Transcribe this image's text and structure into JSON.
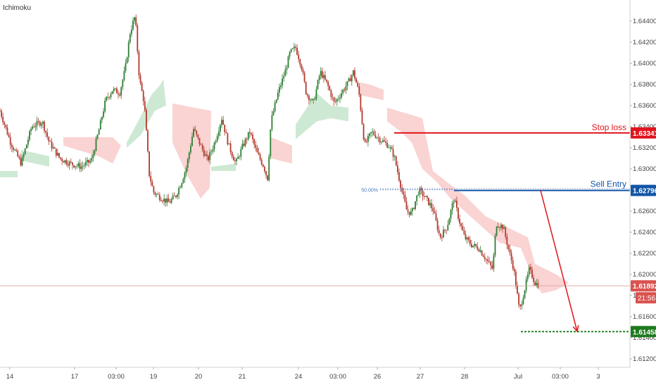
{
  "indicator": {
    "label": "Ichimoku"
  },
  "chart_data": {
    "type": "candlestick",
    "y_ticks": [
      "1.64400",
      "1.64200",
      "1.64000",
      "1.63800",
      "1.63600",
      "1.63400",
      "1.63200",
      "1.63000",
      "1.62800",
      "1.62600",
      "1.62400",
      "1.62200",
      "1.62000",
      "1.61800",
      "1.61600",
      "1.61400",
      "1.61200"
    ],
    "y_tick_values": [
      1.644,
      1.642,
      1.64,
      1.638,
      1.636,
      1.634,
      1.632,
      1.63,
      1.628,
      1.626,
      1.624,
      1.622,
      1.62,
      1.618,
      1.616,
      1.614,
      1.612
    ],
    "ylim": [
      1.6112,
      1.6456
    ],
    "x_ticks": [
      "14",
      "17",
      "03:00",
      "19",
      "20",
      "21",
      "24",
      "03:00",
      "26",
      "27",
      "28",
      "Jul",
      "03:00",
      "3"
    ],
    "x_tick_index": [
      14,
      106,
      165,
      218,
      282,
      344,
      424,
      480,
      536,
      597,
      660,
      736,
      796,
      850
    ],
    "x_total": 895,
    "levels": [
      {
        "name": "stop-loss",
        "label": "Stop loss",
        "value": 1.63341,
        "value_label": "1.63341",
        "color": "#e0151f"
      },
      {
        "name": "sell-entry",
        "label": "Sell Entry",
        "value": 1.62796,
        "value_label": "1.62796",
        "color": "#1255a6"
      },
      {
        "name": "take-profit",
        "label": "",
        "value": 1.61458,
        "value_label": "1.61458",
        "color": "#1e7a1e"
      }
    ],
    "fib_label": "50.00%",
    "fib_value": 1.62796,
    "current_price": {
      "value": 1.61892,
      "label": "1.61892",
      "countdown": "21:56",
      "color": "#d9534f"
    },
    "close_path": [
      [
        0,
        1.6355
      ],
      [
        15,
        1.6325
      ],
      [
        30,
        1.6305
      ],
      [
        45,
        1.634
      ],
      [
        60,
        1.6345
      ],
      [
        70,
        1.6325
      ],
      [
        85,
        1.631
      ],
      [
        100,
        1.6305
      ],
      [
        115,
        1.6302
      ],
      [
        130,
        1.6308
      ],
      [
        140,
        1.6335
      ],
      [
        150,
        1.6365
      ],
      [
        160,
        1.6375
      ],
      [
        170,
        1.6372
      ],
      [
        178,
        1.6395
      ],
      [
        185,
        1.643
      ],
      [
        192,
        1.6445
      ],
      [
        198,
        1.6385
      ],
      [
        205,
        1.6362
      ],
      [
        212,
        1.6295
      ],
      [
        218,
        1.6278
      ],
      [
        230,
        1.6272
      ],
      [
        240,
        1.6268
      ],
      [
        250,
        1.6275
      ],
      [
        258,
        1.6288
      ],
      [
        265,
        1.6302
      ],
      [
        275,
        1.6338
      ],
      [
        285,
        1.6322
      ],
      [
        295,
        1.6308
      ],
      [
        305,
        1.6325
      ],
      [
        315,
        1.6348
      ],
      [
        325,
        1.6322
      ],
      [
        335,
        1.6305
      ],
      [
        345,
        1.6322
      ],
      [
        355,
        1.6335
      ],
      [
        365,
        1.6315
      ],
      [
        375,
        1.6302
      ],
      [
        380,
        1.629
      ],
      [
        385,
        1.6345
      ],
      [
        395,
        1.6372
      ],
      [
        405,
        1.6392
      ],
      [
        412,
        1.641
      ],
      [
        420,
        1.6415
      ],
      [
        428,
        1.6398
      ],
      [
        435,
        1.6372
      ],
      [
        445,
        1.6362
      ],
      [
        455,
        1.6392
      ],
      [
        465,
        1.638
      ],
      [
        475,
        1.6362
      ],
      [
        485,
        1.6372
      ],
      [
        495,
        1.6382
      ],
      [
        502,
        1.6392
      ],
      [
        510,
        1.6372
      ],
      [
        518,
        1.6322
      ],
      [
        528,
        1.6335
      ],
      [
        540,
        1.6328
      ],
      [
        552,
        1.6322
      ],
      [
        560,
        1.6312
      ],
      [
        570,
        1.6282
      ],
      [
        578,
        1.626
      ],
      [
        585,
        1.6258
      ],
      [
        595,
        1.628
      ],
      [
        605,
        1.6272
      ],
      [
        615,
        1.6262
      ],
      [
        625,
        1.6235
      ],
      [
        635,
        1.6245
      ],
      [
        645,
        1.6272
      ],
      [
        652,
        1.6252
      ],
      [
        660,
        1.6235
      ],
      [
        670,
        1.6228
      ],
      [
        680,
        1.6225
      ],
      [
        690,
        1.6215
      ],
      [
        700,
        1.6205
      ],
      [
        705,
        1.6248
      ],
      [
        715,
        1.6245
      ],
      [
        722,
        1.6225
      ],
      [
        730,
        1.6205
      ],
      [
        738,
        1.6165
      ],
      [
        745,
        1.6185
      ],
      [
        752,
        1.6205
      ],
      [
        760,
        1.6192
      ],
      [
        765,
        1.619
      ]
    ],
    "cloud_green": [
      [
        [
          0,
          1.6298
        ],
        [
          25,
          1.6298
        ],
        [
          25,
          1.6292
        ],
        [
          0,
          1.6292
        ]
      ],
      [
        [
          30,
          1.6318
        ],
        [
          70,
          1.6312
        ],
        [
          70,
          1.6302
        ],
        [
          30,
          1.6308
        ]
      ],
      [
        [
          180,
          1.6325
        ],
        [
          200,
          1.635
        ],
        [
          215,
          1.637
        ],
        [
          228,
          1.638
        ],
        [
          232,
          1.6385
        ],
        [
          236,
          1.636
        ],
        [
          220,
          1.6355
        ],
        [
          200,
          1.6332
        ],
        [
          180,
          1.632
        ]
      ],
      [
        [
          300,
          1.6302
        ],
        [
          335,
          1.6305
        ],
        [
          335,
          1.6298
        ],
        [
          300,
          1.6298
        ]
      ],
      [
        [
          420,
          1.6342
        ],
        [
          450,
          1.6372
        ],
        [
          470,
          1.636
        ],
        [
          495,
          1.6358
        ],
        [
          495,
          1.6345
        ],
        [
          470,
          1.6348
        ],
        [
          450,
          1.6345
        ],
        [
          420,
          1.6328
        ]
      ]
    ],
    "cloud_red": [
      [
        [
          90,
          1.633
        ],
        [
          160,
          1.633
        ],
        [
          172,
          1.6322
        ],
        [
          160,
          1.6305
        ],
        [
          140,
          1.6312
        ],
        [
          90,
          1.6322
        ]
      ],
      [
        [
          245,
          1.6362
        ],
        [
          300,
          1.6355
        ],
        [
          298,
          1.6282
        ],
        [
          285,
          1.6272
        ],
        [
          265,
          1.6295
        ],
        [
          245,
          1.6325
        ]
      ],
      [
        [
          385,
          1.633
        ],
        [
          415,
          1.6322
        ],
        [
          415,
          1.6305
        ],
        [
          385,
          1.631
        ]
      ],
      [
        [
          510,
          1.6382
        ],
        [
          525,
          1.638
        ],
        [
          545,
          1.6375
        ],
        [
          545,
          1.6365
        ],
        [
          525,
          1.6368
        ],
        [
          510,
          1.637
        ]
      ],
      [
        [
          550,
          1.6358
        ],
        [
          600,
          1.6348
        ],
        [
          615,
          1.6298
        ],
        [
          640,
          1.6285
        ],
        [
          660,
          1.6275
        ],
        [
          690,
          1.6255
        ],
        [
          720,
          1.6245
        ],
        [
          750,
          1.6235
        ],
        [
          760,
          1.621
        ],
        [
          790,
          1.62
        ],
        [
          808,
          1.6192
        ],
        [
          790,
          1.6185
        ],
        [
          770,
          1.6182
        ],
        [
          760,
          1.6192
        ],
        [
          740,
          1.6225
        ],
        [
          710,
          1.623
        ],
        [
          690,
          1.6242
        ],
        [
          660,
          1.626
        ],
        [
          640,
          1.6272
        ],
        [
          620,
          1.6288
        ],
        [
          600,
          1.63
        ],
        [
          585,
          1.6325
        ],
        [
          570,
          1.6335
        ],
        [
          550,
          1.6345
        ]
      ]
    ],
    "forecast_arrow": {
      "from": [
        768,
        1.62796
      ],
      "to": [
        820,
        1.6146
      ]
    }
  }
}
